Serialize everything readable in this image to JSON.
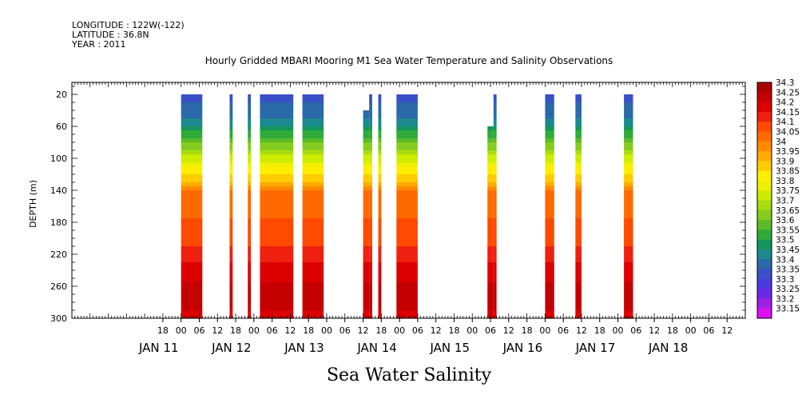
{
  "header": {
    "longitude": "LONGITUDE : 122W(-122)",
    "latitude": "LATITUDE : 36.8N",
    "year": "YEAR : 2011"
  },
  "chart_data": {
    "type": "heatmap",
    "title": "Hourly Gridded MBARI Mooring M1 Sea Water Temperature and Salinity Observations",
    "xlabel": "Sea Water Salinity",
    "ylabel": "DEPTH (m)",
    "x_unit": "hours after 2011-01-11 00:00",
    "xlim": [
      -36,
      186
    ],
    "ylim": [
      300,
      5
    ],
    "hour_ticks": [
      "18",
      "00",
      "06",
      "12",
      "18",
      "00",
      "06",
      "12",
      "18",
      "00",
      "06",
      "12",
      "18",
      "00",
      "06",
      "12",
      "18",
      "00",
      "06",
      "12",
      "18",
      "00",
      "06",
      "12",
      "18",
      "00",
      "06",
      "12",
      "18",
      "00",
      "06",
      "12"
    ],
    "date_labels": [
      "JAN 11",
      "JAN 12",
      "JAN 13",
      "JAN 14",
      "JAN 15",
      "JAN 16",
      "JAN 17",
      "JAN 18"
    ],
    "depth_ticks": [
      20,
      60,
      100,
      140,
      180,
      220,
      260,
      300
    ],
    "colorbar": {
      "levels": [
        "34.3",
        "34.25",
        "34.2",
        "34.15",
        "34.1",
        "34.05",
        "34",
        "33.95",
        "33.9",
        "33.85",
        "33.8",
        "33.75",
        "33.7",
        "33.65",
        "33.6",
        "33.55",
        "33.5",
        "33.45",
        "33.4",
        "33.35",
        "33.3",
        "33.25",
        "33.2",
        "33.15"
      ],
      "colors": [
        "#aa0000",
        "#c40000",
        "#dd0000",
        "#f02010",
        "#ff4a00",
        "#ff6a00",
        "#ff8a00",
        "#ffaa00",
        "#ffcc00",
        "#ffee00",
        "#eef000",
        "#ccec00",
        "#a8dc10",
        "#84cc20",
        "#5cbc28",
        "#30aa3a",
        "#12975a",
        "#1c8890",
        "#2a6aa8",
        "#3a50c8",
        "#4a3ae0",
        "#6a28e6",
        "#a020e0",
        "#dd10f0"
      ]
    },
    "data_windows": [
      {
        "start": 0,
        "end": 7
      },
      {
        "start": 16,
        "end": 17
      },
      {
        "start": 22,
        "end": 23
      },
      {
        "start": 26,
        "end": 37
      },
      {
        "start": 40,
        "end": 47
      },
      {
        "start": 60,
        "end": 62,
        "top_depth": 40
      },
      {
        "start": 62,
        "end": 63
      },
      {
        "start": 65,
        "end": 66
      },
      {
        "start": 71,
        "end": 78
      },
      {
        "start": 101,
        "end": 103,
        "top_depth": 60
      },
      {
        "start": 103,
        "end": 104
      },
      {
        "start": 120,
        "end": 123
      },
      {
        "start": 130,
        "end": 132
      },
      {
        "start": 146,
        "end": 149
      }
    ],
    "profile": [
      {
        "depth": 20,
        "salinity": 33.35
      },
      {
        "depth": 40,
        "salinity": 33.4
      },
      {
        "depth": 55,
        "salinity": 33.45
      },
      {
        "depth": 70,
        "salinity": 33.55
      },
      {
        "depth": 85,
        "salinity": 33.65
      },
      {
        "depth": 100,
        "salinity": 33.75
      },
      {
        "depth": 112,
        "salinity": 33.85
      },
      {
        "depth": 125,
        "salinity": 33.9
      },
      {
        "depth": 135,
        "salinity": 33.95
      },
      {
        "depth": 145,
        "salinity": 34.05
      },
      {
        "depth": 205,
        "salinity": 34.1
      },
      {
        "depth": 220,
        "salinity": 34.15
      },
      {
        "depth": 235,
        "salinity": 34.2
      },
      {
        "depth": 275,
        "salinity": 34.25
      },
      {
        "depth": 300,
        "salinity": 34.2
      }
    ]
  }
}
